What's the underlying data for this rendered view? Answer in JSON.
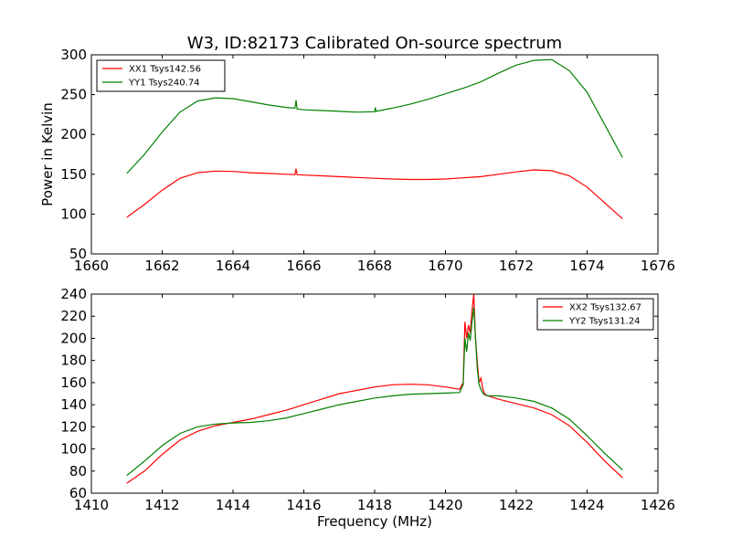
{
  "title": "W3, ID:82173 Calibrated On-source spectrum",
  "chart_data": [
    {
      "type": "line",
      "ylabel": "Power in Kelvin",
      "xlabel": "",
      "xlim": [
        1660,
        1676
      ],
      "ylim": [
        50,
        300
      ],
      "xticks": [
        "1660",
        "1662",
        "1664",
        "1666",
        "1668",
        "1670",
        "1672",
        "1674",
        "1676"
      ],
      "yticks": [
        "50",
        "100",
        "150",
        "200",
        "250",
        "300"
      ],
      "legend": "top-left",
      "series": [
        {
          "name": "XX1 Tsys142.56",
          "color": "#ff0000",
          "x": [
            1661.0,
            1661.5,
            1662.0,
            1662.5,
            1663.0,
            1663.5,
            1664.0,
            1664.5,
            1665.0,
            1665.5,
            1665.75,
            1665.78,
            1665.81,
            1666.0,
            1666.5,
            1667.0,
            1667.5,
            1668.0,
            1668.5,
            1669.0,
            1669.5,
            1670.0,
            1670.5,
            1671.0,
            1671.5,
            1672.0,
            1672.5,
            1673.0,
            1673.5,
            1674.0,
            1674.5,
            1675.0
          ],
          "y": [
            96,
            112,
            130,
            145,
            152,
            154,
            153.5,
            152,
            151,
            150,
            149.5,
            157,
            149.5,
            149,
            148,
            147,
            146,
            145,
            144,
            143.5,
            143.5,
            144,
            145.5,
            147,
            150,
            153,
            155.5,
            154.5,
            148,
            134,
            114,
            94
          ]
        },
        {
          "name": "YY1 Tsys240.74",
          "color": "#008000",
          "x": [
            1661.0,
            1661.5,
            1662.0,
            1662.5,
            1663.0,
            1663.5,
            1664.0,
            1664.5,
            1665.0,
            1665.5,
            1665.75,
            1665.78,
            1665.81,
            1666.0,
            1666.5,
            1667.0,
            1667.5,
            1668.0,
            1668.02,
            1668.04,
            1668.5,
            1669.0,
            1669.5,
            1670.0,
            1670.5,
            1671.0,
            1671.5,
            1672.0,
            1672.5,
            1673.0,
            1673.5,
            1674.0,
            1674.5,
            1675.0
          ],
          "y": [
            151,
            175,
            203,
            228,
            242,
            246,
            245,
            241,
            237,
            234,
            233,
            243,
            232,
            231,
            230,
            229,
            228,
            228.5,
            234,
            229,
            233,
            238,
            244,
            251,
            258,
            266,
            277,
            287,
            293,
            294,
            280,
            253,
            212,
            171
          ]
        }
      ]
    },
    {
      "type": "line",
      "xlabel": "Frequency (MHz)",
      "ylabel": "",
      "xlim": [
        1410,
        1426
      ],
      "ylim": [
        60,
        240
      ],
      "xticks": [
        "1410",
        "1412",
        "1414",
        "1416",
        "1418",
        "1420",
        "1422",
        "1424",
        "1426"
      ],
      "yticks": [
        "60",
        "80",
        "100",
        "120",
        "140",
        "160",
        "180",
        "200",
        "220",
        "240"
      ],
      "legend": "top-right",
      "series": [
        {
          "name": "XX2 Tsys132.67",
          "color": "#ff0000",
          "x": [
            1411.0,
            1411.5,
            1412.0,
            1412.5,
            1413.0,
            1413.5,
            1414.0,
            1414.5,
            1415.0,
            1415.5,
            1416.0,
            1416.5,
            1417.0,
            1417.5,
            1418.0,
            1418.5,
            1419.0,
            1419.5,
            1420.0,
            1420.4,
            1420.5,
            1420.55,
            1420.6,
            1420.65,
            1420.7,
            1420.75,
            1420.8,
            1420.85,
            1420.9,
            1420.95,
            1421.0,
            1421.05,
            1421.1,
            1421.2,
            1421.5,
            1422.0,
            1422.5,
            1423.0,
            1423.5,
            1424.0,
            1424.5,
            1425.0
          ],
          "y": [
            69,
            80,
            95,
            108,
            116,
            121,
            124,
            127,
            131,
            135,
            140,
            145,
            150,
            153,
            156,
            158,
            158.5,
            158,
            156,
            154,
            160,
            215,
            200,
            212,
            205,
            225,
            240,
            200,
            178,
            160,
            164,
            155,
            150,
            148,
            145,
            141,
            137,
            131,
            121,
            106,
            89,
            74
          ]
        },
        {
          "name": "YY2 Tsys131.24",
          "color": "#008000",
          "x": [
            1411.0,
            1411.5,
            1412.0,
            1412.5,
            1413.0,
            1413.5,
            1414.0,
            1414.5,
            1415.0,
            1415.5,
            1416.0,
            1416.5,
            1417.0,
            1417.5,
            1418.0,
            1418.5,
            1419.0,
            1419.5,
            1420.0,
            1420.4,
            1420.5,
            1420.55,
            1420.6,
            1420.65,
            1420.7,
            1420.75,
            1420.8,
            1420.85,
            1420.9,
            1420.95,
            1421.0,
            1421.05,
            1421.1,
            1421.2,
            1421.5,
            1422.0,
            1422.5,
            1423.0,
            1423.5,
            1424.0,
            1424.5,
            1425.0
          ],
          "y": [
            76,
            89,
            103,
            114,
            120,
            122.5,
            123.5,
            124,
            125.5,
            128,
            132,
            136,
            140,
            143,
            146,
            148,
            149.5,
            150,
            150.5,
            151,
            158,
            200,
            188,
            205,
            198,
            215,
            228,
            200,
            172,
            158,
            154,
            151,
            149,
            148,
            148,
            146,
            143,
            137,
            127,
            112,
            96,
            81
          ]
        }
      ]
    }
  ]
}
